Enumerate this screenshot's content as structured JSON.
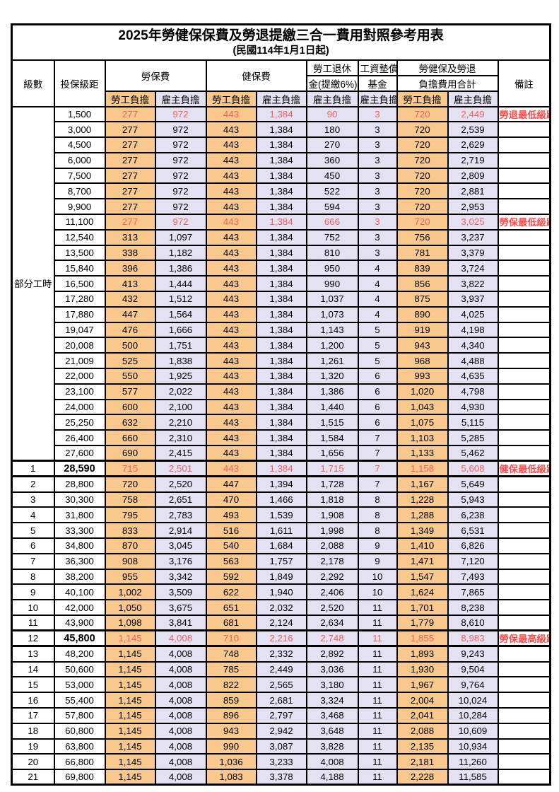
{
  "title": "2025年勞健保保費及勞退提繳三合一費用對照參考用表",
  "subtitle": "(民國114年1月1日起)",
  "colors": {
    "employee_column_bg": "#F9C88C",
    "employer_column_bg": "#E3E1F2",
    "highlight_value_text": "#F25F5F",
    "note_text": "#FF4B4B",
    "border": "#000000"
  },
  "header": {
    "level": "級數",
    "salary_bracket": "投保級距",
    "labor_insurance": "勞保費",
    "health_insurance": "健保費",
    "pension_line1": "勞工退休",
    "pension_line2": "金(提繳6%)",
    "wage_fund_line1": "工資墊償",
    "wage_fund_line2": "基金",
    "total_line1": "勞健保及勞退",
    "total_line2": "負擔費用合計",
    "note": "備註",
    "employee_share": "勞工負擔",
    "employer_share": "雇主負擔"
  },
  "part_time": {
    "label": "部分工時",
    "span": 23
  },
  "rows": [
    {
      "level": "",
      "salary": "1,500",
      "labor_emp": "277",
      "labor_er": "972",
      "health_emp": "443",
      "health_er": "1,384",
      "pension_er": "90",
      "fund_er": "3",
      "total_emp": "720",
      "total_er": "2,449",
      "note": "勞退最低級距",
      "highlight": true,
      "thick": false
    },
    {
      "level": "",
      "salary": "3,000",
      "labor_emp": "277",
      "labor_er": "972",
      "health_emp": "443",
      "health_er": "1,384",
      "pension_er": "180",
      "fund_er": "3",
      "total_emp": "720",
      "total_er": "2,539",
      "note": "",
      "highlight": false,
      "thick": false
    },
    {
      "level": "",
      "salary": "4,500",
      "labor_emp": "277",
      "labor_er": "972",
      "health_emp": "443",
      "health_er": "1,384",
      "pension_er": "270",
      "fund_er": "3",
      "total_emp": "720",
      "total_er": "2,629",
      "note": "",
      "highlight": false,
      "thick": false
    },
    {
      "level": "",
      "salary": "6,000",
      "labor_emp": "277",
      "labor_er": "972",
      "health_emp": "443",
      "health_er": "1,384",
      "pension_er": "360",
      "fund_er": "3",
      "total_emp": "720",
      "total_er": "2,719",
      "note": "",
      "highlight": false,
      "thick": false
    },
    {
      "level": "",
      "salary": "7,500",
      "labor_emp": "277",
      "labor_er": "972",
      "health_emp": "443",
      "health_er": "1,384",
      "pension_er": "450",
      "fund_er": "3",
      "total_emp": "720",
      "total_er": "2,809",
      "note": "",
      "highlight": false,
      "thick": false
    },
    {
      "level": "",
      "salary": "8,700",
      "labor_emp": "277",
      "labor_er": "972",
      "health_emp": "443",
      "health_er": "1,384",
      "pension_er": "522",
      "fund_er": "3",
      "total_emp": "720",
      "total_er": "2,881",
      "note": "",
      "highlight": false,
      "thick": false
    },
    {
      "level": "",
      "salary": "9,900",
      "labor_emp": "277",
      "labor_er": "972",
      "health_emp": "443",
      "health_er": "1,384",
      "pension_er": "594",
      "fund_er": "3",
      "total_emp": "720",
      "total_er": "2,953",
      "note": "",
      "highlight": false,
      "thick": false
    },
    {
      "level": "",
      "salary": "11,100",
      "labor_emp": "277",
      "labor_er": "972",
      "health_emp": "443",
      "health_er": "1,384",
      "pension_er": "666",
      "fund_er": "3",
      "total_emp": "720",
      "total_er": "3,025",
      "note": "勞保最低級距",
      "highlight": true,
      "thick": false
    },
    {
      "level": "",
      "salary": "12,540",
      "labor_emp": "313",
      "labor_er": "1,097",
      "health_emp": "443",
      "health_er": "1,384",
      "pension_er": "752",
      "fund_er": "3",
      "total_emp": "756",
      "total_er": "3,237",
      "note": "",
      "highlight": false,
      "thick": false
    },
    {
      "level": "",
      "salary": "13,500",
      "labor_emp": "338",
      "labor_er": "1,182",
      "health_emp": "443",
      "health_er": "1,384",
      "pension_er": "810",
      "fund_er": "3",
      "total_emp": "781",
      "total_er": "3,379",
      "note": "",
      "highlight": false,
      "thick": false
    },
    {
      "level": "",
      "salary": "15,840",
      "labor_emp": "396",
      "labor_er": "1,386",
      "health_emp": "443",
      "health_er": "1,384",
      "pension_er": "950",
      "fund_er": "4",
      "total_emp": "839",
      "total_er": "3,724",
      "note": "",
      "highlight": false,
      "thick": false
    },
    {
      "level": "",
      "salary": "16,500",
      "labor_emp": "413",
      "labor_er": "1,444",
      "health_emp": "443",
      "health_er": "1,384",
      "pension_er": "990",
      "fund_er": "4",
      "total_emp": "856",
      "total_er": "3,822",
      "note": "",
      "highlight": false,
      "thick": false
    },
    {
      "level": "",
      "salary": "17,280",
      "labor_emp": "432",
      "labor_er": "1,512",
      "health_emp": "443",
      "health_er": "1,384",
      "pension_er": "1,037",
      "fund_er": "4",
      "total_emp": "875",
      "total_er": "3,937",
      "note": "",
      "highlight": false,
      "thick": false
    },
    {
      "level": "",
      "salary": "17,880",
      "labor_emp": "447",
      "labor_er": "1,564",
      "health_emp": "443",
      "health_er": "1,384",
      "pension_er": "1,073",
      "fund_er": "4",
      "total_emp": "890",
      "total_er": "4,025",
      "note": "",
      "highlight": false,
      "thick": false
    },
    {
      "level": "",
      "salary": "19,047",
      "labor_emp": "476",
      "labor_er": "1,666",
      "health_emp": "443",
      "health_er": "1,384",
      "pension_er": "1,143",
      "fund_er": "5",
      "total_emp": "919",
      "total_er": "4,198",
      "note": "",
      "highlight": false,
      "thick": false
    },
    {
      "level": "",
      "salary": "20,008",
      "labor_emp": "500",
      "labor_er": "1,751",
      "health_emp": "443",
      "health_er": "1,384",
      "pension_er": "1,200",
      "fund_er": "5",
      "total_emp": "943",
      "total_er": "4,340",
      "note": "",
      "highlight": false,
      "thick": false
    },
    {
      "level": "",
      "salary": "21,009",
      "labor_emp": "525",
      "labor_er": "1,838",
      "health_emp": "443",
      "health_er": "1,384",
      "pension_er": "1,261",
      "fund_er": "5",
      "total_emp": "968",
      "total_er": "4,488",
      "note": "",
      "highlight": false,
      "thick": false
    },
    {
      "level": "",
      "salary": "22,000",
      "labor_emp": "550",
      "labor_er": "1,925",
      "health_emp": "443",
      "health_er": "1,384",
      "pension_er": "1,320",
      "fund_er": "6",
      "total_emp": "993",
      "total_er": "4,635",
      "note": "",
      "highlight": false,
      "thick": false
    },
    {
      "level": "",
      "salary": "23,100",
      "labor_emp": "577",
      "labor_er": "2,022",
      "health_emp": "443",
      "health_er": "1,384",
      "pension_er": "1,386",
      "fund_er": "6",
      "total_emp": "1,020",
      "total_er": "4,798",
      "note": "",
      "highlight": false,
      "thick": false
    },
    {
      "level": "",
      "salary": "24,000",
      "labor_emp": "600",
      "labor_er": "2,100",
      "health_emp": "443",
      "health_er": "1,384",
      "pension_er": "1,440",
      "fund_er": "6",
      "total_emp": "1,043",
      "total_er": "4,930",
      "note": "",
      "highlight": false,
      "thick": false
    },
    {
      "level": "",
      "salary": "25,250",
      "labor_emp": "632",
      "labor_er": "2,210",
      "health_emp": "443",
      "health_er": "1,384",
      "pension_er": "1,515",
      "fund_er": "6",
      "total_emp": "1,075",
      "total_er": "5,115",
      "note": "",
      "highlight": false,
      "thick": false
    },
    {
      "level": "",
      "salary": "26,400",
      "labor_emp": "660",
      "labor_er": "2,310",
      "health_emp": "443",
      "health_er": "1,384",
      "pension_er": "1,584",
      "fund_er": "7",
      "total_emp": "1,103",
      "total_er": "5,285",
      "note": "",
      "highlight": false,
      "thick": false
    },
    {
      "level": "",
      "salary": "27,600",
      "labor_emp": "690",
      "labor_er": "2,415",
      "health_emp": "443",
      "health_er": "1,384",
      "pension_er": "1,656",
      "fund_er": "7",
      "total_emp": "1,133",
      "total_er": "5,462",
      "note": "",
      "highlight": false,
      "thick": false
    },
    {
      "level": "1",
      "salary": "28,590",
      "labor_emp": "715",
      "labor_er": "2,501",
      "health_emp": "443",
      "health_er": "1,384",
      "pension_er": "1,715",
      "fund_er": "7",
      "total_emp": "1,158",
      "total_er": "5,608",
      "note": "健保最低級距",
      "highlight": true,
      "thick": true
    },
    {
      "level": "2",
      "salary": "28,800",
      "labor_emp": "720",
      "labor_er": "2,520",
      "health_emp": "447",
      "health_er": "1,394",
      "pension_er": "1,728",
      "fund_er": "7",
      "total_emp": "1,167",
      "total_er": "5,649",
      "note": "",
      "highlight": false,
      "thick": false
    },
    {
      "level": "3",
      "salary": "30,300",
      "labor_emp": "758",
      "labor_er": "2,651",
      "health_emp": "470",
      "health_er": "1,466",
      "pension_er": "1,818",
      "fund_er": "8",
      "total_emp": "1,228",
      "total_er": "5,943",
      "note": "",
      "highlight": false,
      "thick": false
    },
    {
      "level": "4",
      "salary": "31,800",
      "labor_emp": "795",
      "labor_er": "2,783",
      "health_emp": "493",
      "health_er": "1,539",
      "pension_er": "1,908",
      "fund_er": "8",
      "total_emp": "1,288",
      "total_er": "6,238",
      "note": "",
      "highlight": false,
      "thick": false
    },
    {
      "level": "5",
      "salary": "33,300",
      "labor_emp": "833",
      "labor_er": "2,914",
      "health_emp": "516",
      "health_er": "1,611",
      "pension_er": "1,998",
      "fund_er": "8",
      "total_emp": "1,349",
      "total_er": "6,531",
      "note": "",
      "highlight": false,
      "thick": false
    },
    {
      "level": "6",
      "salary": "34,800",
      "labor_emp": "870",
      "labor_er": "3,045",
      "health_emp": "540",
      "health_er": "1,684",
      "pension_er": "2,088",
      "fund_er": "9",
      "total_emp": "1,410",
      "total_er": "6,826",
      "note": "",
      "highlight": false,
      "thick": false
    },
    {
      "level": "7",
      "salary": "36,300",
      "labor_emp": "908",
      "labor_er": "3,176",
      "health_emp": "563",
      "health_er": "1,757",
      "pension_er": "2,178",
      "fund_er": "9",
      "total_emp": "1,471",
      "total_er": "7,120",
      "note": "",
      "highlight": false,
      "thick": false
    },
    {
      "level": "8",
      "salary": "38,200",
      "labor_emp": "955",
      "labor_er": "3,342",
      "health_emp": "592",
      "health_er": "1,849",
      "pension_er": "2,292",
      "fund_er": "10",
      "total_emp": "1,547",
      "total_er": "7,493",
      "note": "",
      "highlight": false,
      "thick": false
    },
    {
      "level": "9",
      "salary": "40,100",
      "labor_emp": "1,002",
      "labor_er": "3,509",
      "health_emp": "622",
      "health_er": "1,940",
      "pension_er": "2,406",
      "fund_er": "10",
      "total_emp": "1,624",
      "total_er": "7,865",
      "note": "",
      "highlight": false,
      "thick": false
    },
    {
      "level": "10",
      "salary": "42,000",
      "labor_emp": "1,050",
      "labor_er": "3,675",
      "health_emp": "651",
      "health_er": "2,032",
      "pension_er": "2,520",
      "fund_er": "11",
      "total_emp": "1,701",
      "total_er": "8,238",
      "note": "",
      "highlight": false,
      "thick": false
    },
    {
      "level": "11",
      "salary": "43,900",
      "labor_emp": "1,098",
      "labor_er": "3,841",
      "health_emp": "681",
      "health_er": "2,124",
      "pension_er": "2,634",
      "fund_er": "11",
      "total_emp": "1,779",
      "total_er": "8,610",
      "note": "",
      "highlight": false,
      "thick": false
    },
    {
      "level": "12",
      "salary": "45,800",
      "labor_emp": "1,145",
      "labor_er": "4,008",
      "health_emp": "710",
      "health_er": "2,216",
      "pension_er": "2,748",
      "fund_er": "11",
      "total_emp": "1,855",
      "total_er": "8,983",
      "note": "勞保最高級距",
      "highlight": true,
      "thick": true
    },
    {
      "level": "13",
      "salary": "48,200",
      "labor_emp": "1,145",
      "labor_er": "4,008",
      "health_emp": "748",
      "health_er": "2,332",
      "pension_er": "2,892",
      "fund_er": "11",
      "total_emp": "1,893",
      "total_er": "9,243",
      "note": "",
      "highlight": false,
      "thick": false
    },
    {
      "level": "14",
      "salary": "50,600",
      "labor_emp": "1,145",
      "labor_er": "4,008",
      "health_emp": "785",
      "health_er": "2,449",
      "pension_er": "3,036",
      "fund_er": "11",
      "total_emp": "1,930",
      "total_er": "9,504",
      "note": "",
      "highlight": false,
      "thick": false
    },
    {
      "level": "15",
      "salary": "53,000",
      "labor_emp": "1,145",
      "labor_er": "4,008",
      "health_emp": "822",
      "health_er": "2,565",
      "pension_er": "3,180",
      "fund_er": "11",
      "total_emp": "1,967",
      "total_er": "9,764",
      "note": "",
      "highlight": false,
      "thick": false
    },
    {
      "level": "16",
      "salary": "55,400",
      "labor_emp": "1,145",
      "labor_er": "4,008",
      "health_emp": "859",
      "health_er": "2,681",
      "pension_er": "3,324",
      "fund_er": "11",
      "total_emp": "2,004",
      "total_er": "10,024",
      "note": "",
      "highlight": false,
      "thick": false
    },
    {
      "level": "17",
      "salary": "57,800",
      "labor_emp": "1,145",
      "labor_er": "4,008",
      "health_emp": "896",
      "health_er": "2,797",
      "pension_er": "3,468",
      "fund_er": "11",
      "total_emp": "2,041",
      "total_er": "10,284",
      "note": "",
      "highlight": false,
      "thick": false
    },
    {
      "level": "18",
      "salary": "60,800",
      "labor_emp": "1,145",
      "labor_er": "4,008",
      "health_emp": "943",
      "health_er": "2,942",
      "pension_er": "3,648",
      "fund_er": "11",
      "total_emp": "2,088",
      "total_er": "10,609",
      "note": "",
      "highlight": false,
      "thick": false
    },
    {
      "level": "19",
      "salary": "63,800",
      "labor_emp": "1,145",
      "labor_er": "4,008",
      "health_emp": "990",
      "health_er": "3,087",
      "pension_er": "3,828",
      "fund_er": "11",
      "total_emp": "2,135",
      "total_er": "10,934",
      "note": "",
      "highlight": false,
      "thick": false
    },
    {
      "level": "20",
      "salary": "66,800",
      "labor_emp": "1,145",
      "labor_er": "4,008",
      "health_emp": "1,036",
      "health_er": "3,233",
      "pension_er": "4,008",
      "fund_er": "11",
      "total_emp": "2,181",
      "total_er": "11,260",
      "note": "",
      "highlight": false,
      "thick": false
    },
    {
      "level": "21",
      "salary": "69,800",
      "labor_emp": "1,145",
      "labor_er": "4,008",
      "health_emp": "1,083",
      "health_er": "3,378",
      "pension_er": "4,188",
      "fund_er": "11",
      "total_emp": "2,228",
      "total_er": "11,585",
      "note": "",
      "highlight": false,
      "thick": false
    }
  ]
}
